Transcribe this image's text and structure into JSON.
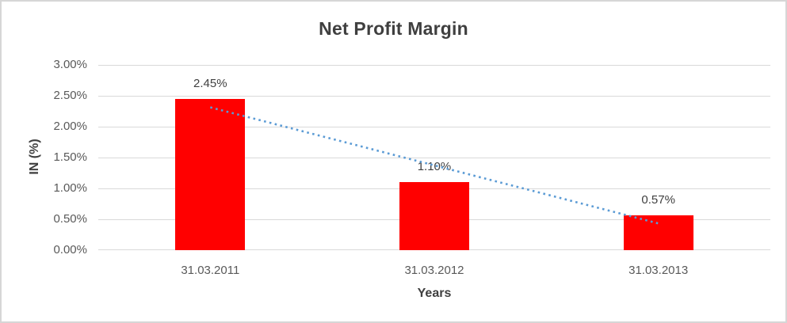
{
  "chart_data": {
    "type": "bar",
    "title": "Net Profit Margin",
    "xlabel": "Years",
    "ylabel": "IN (%)",
    "categories": [
      "31.03.2011",
      "31.03.2012",
      "31.03.2013"
    ],
    "values": [
      2.45,
      1.1,
      0.57
    ],
    "data_labels": [
      "2.45%",
      "1.10%",
      "0.57%"
    ],
    "ylim": [
      0,
      3
    ],
    "ytick_step": 0.5,
    "ytick_labels": [
      "0.00%",
      "0.50%",
      "1.00%",
      "1.50%",
      "2.00%",
      "2.50%",
      "3.00%"
    ],
    "grid": true,
    "legend": "none",
    "colors": {
      "bar": "#ff0000",
      "trendline": "#5b9bd5",
      "gridline": "#d9d9d9",
      "title_text": "#3f3f3f",
      "axis_text": "#595959",
      "data_label_text": "#404040",
      "frame_border": "#d6d6d6"
    },
    "trendline": {
      "type": "linear",
      "style": "dotted",
      "start_value": 2.3133,
      "end_value": 0.4333
    }
  }
}
